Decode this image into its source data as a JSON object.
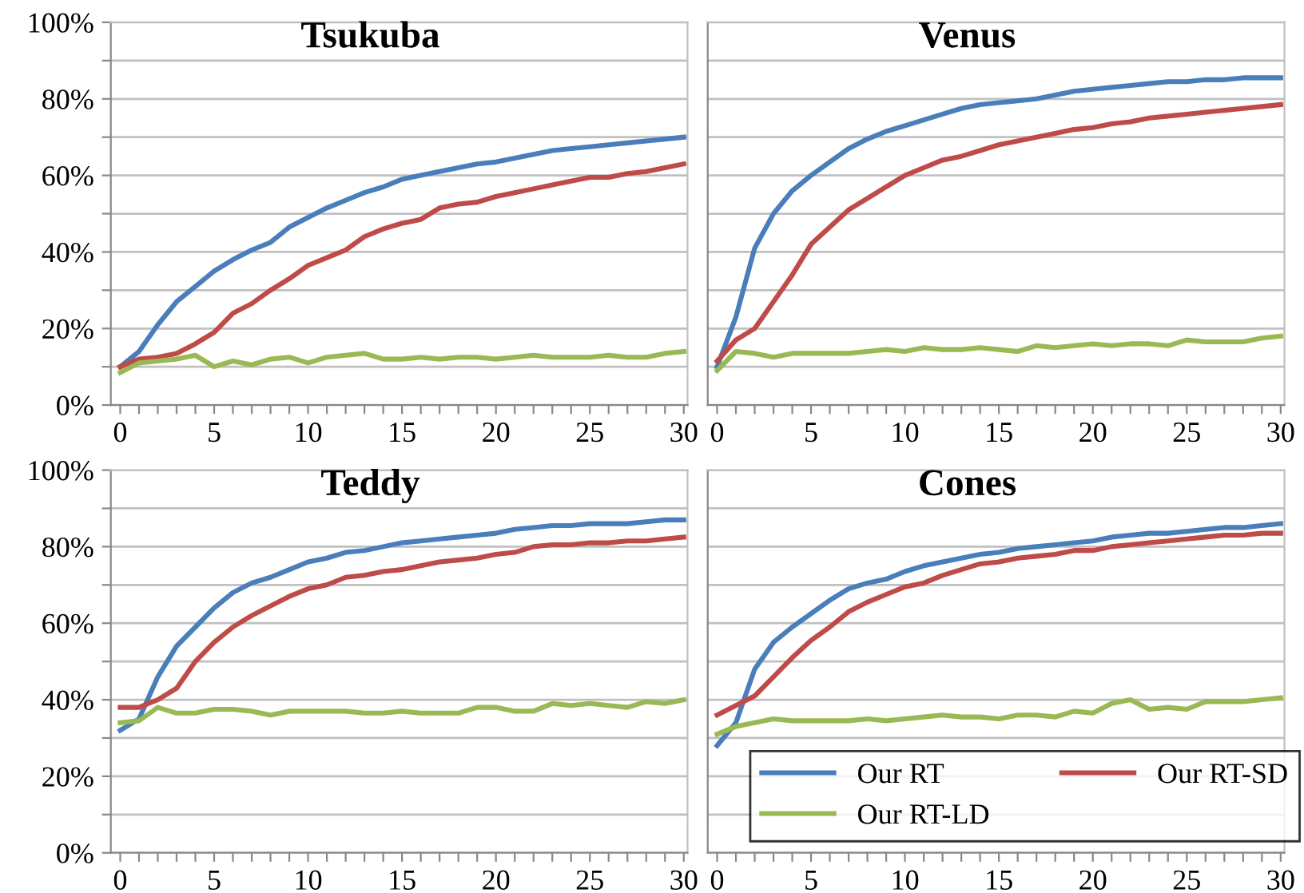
{
  "chart_data": [
    {
      "type": "line",
      "title": "Tsukuba",
      "x": [
        0,
        1,
        2,
        3,
        4,
        5,
        6,
        7,
        8,
        9,
        10,
        11,
        12,
        13,
        14,
        15,
        16,
        17,
        18,
        19,
        20,
        21,
        22,
        23,
        24,
        25,
        26,
        27,
        28,
        29,
        30
      ],
      "series": [
        {
          "color": "#4a7ebb",
          "values": [
            10,
            14,
            21,
            27,
            31,
            35,
            38,
            40.5,
            42.5,
            46.5,
            49,
            51.5,
            53.5,
            55.5,
            57,
            59,
            60,
            61,
            62,
            63,
            63.5,
            64.5,
            65.5,
            66.5,
            67,
            67.5,
            68,
            68.5,
            69,
            69.5,
            70
          ]
        },
        {
          "color": "#be4b48",
          "values": [
            10,
            12,
            12.5,
            13.5,
            16,
            19,
            24,
            26.5,
            30,
            33,
            36.5,
            38.5,
            40.5,
            44,
            46,
            47.5,
            48.5,
            51.5,
            52.5,
            53,
            54.5,
            55.5,
            56.5,
            57.5,
            58.5,
            59.5,
            59.5,
            60.5,
            61,
            62,
            63
          ]
        },
        {
          "color": "#98b954",
          "values": [
            8.5,
            11,
            11.5,
            12,
            13,
            10,
            11.5,
            10.5,
            12,
            12.5,
            11,
            12.5,
            13,
            13.5,
            12,
            12,
            12.5,
            12,
            12.5,
            12.5,
            12,
            12.5,
            13,
            12.5,
            12.5,
            12.5,
            13,
            12.5,
            12.5,
            13.5,
            14
          ]
        }
      ],
      "xlim": [
        -0.5,
        30.2
      ],
      "ylim": [
        0,
        100
      ],
      "xticks": [
        0,
        {
          "value": 1,
          "label": null
        },
        {
          "value": 2,
          "label": null
        },
        {
          "value": 3,
          "label": null
        },
        {
          "value": 4,
          "label": null
        },
        5,
        {
          "value": 6,
          "label": null
        },
        {
          "value": 7,
          "label": null
        },
        {
          "value": 8,
          "label": null
        },
        {
          "value": 9,
          "label": null
        },
        10,
        {
          "value": 11,
          "label": null
        },
        {
          "value": 12,
          "label": null
        },
        {
          "value": 13,
          "label": null
        },
        {
          "value": 14,
          "label": null
        },
        15,
        {
          "value": 16,
          "label": null
        },
        {
          "value": 17,
          "label": null
        },
        {
          "value": 18,
          "label": null
        },
        {
          "value": 19,
          "label": null
        },
        20,
        {
          "value": 21,
          "label": null
        },
        {
          "value": 22,
          "label": null
        },
        {
          "value": 23,
          "label": null
        },
        {
          "value": 24,
          "label": null
        },
        25,
        {
          "value": 26,
          "label": null
        },
        {
          "value": 27,
          "label": null
        },
        {
          "value": 28,
          "label": null
        },
        {
          "value": 29,
          "label": null
        },
        30
      ],
      "yticks": [
        {
          "value": 0,
          "label": "0%"
        },
        {
          "value": 10,
          "label": null
        },
        {
          "value": 20,
          "label": "20%"
        },
        {
          "value": 30,
          "label": null
        },
        {
          "value": 40,
          "label": "40%"
        },
        {
          "value": 50,
          "label": null
        },
        {
          "value": 60,
          "label": "60%"
        },
        {
          "value": 70,
          "label": null
        },
        {
          "value": 80,
          "label": "80%"
        },
        {
          "value": 90,
          "label": null
        },
        {
          "value": 100,
          "label": "100%"
        }
      ],
      "grid": "y",
      "legend": false,
      "marker": "none",
      "line_style": "solid"
    },
    {
      "type": "line",
      "title": "Venus",
      "x": [
        0,
        1,
        2,
        3,
        4,
        5,
        6,
        7,
        8,
        9,
        10,
        11,
        12,
        13,
        14,
        15,
        16,
        17,
        18,
        19,
        20,
        21,
        22,
        23,
        24,
        25,
        26,
        27,
        28,
        29,
        30
      ],
      "series": [
        {
          "color": "#4a7ebb",
          "values": [
            10,
            23,
            41,
            50,
            56,
            60,
            63.5,
            67,
            69.5,
            71.5,
            73,
            74.5,
            76,
            77.5,
            78.5,
            79,
            79.5,
            80,
            81,
            82,
            82.5,
            83,
            83.5,
            84,
            84.5,
            84.5,
            85,
            85,
            85.5,
            85.5,
            85.5
          ]
        },
        {
          "color": "#be4b48",
          "values": [
            11.5,
            17,
            20,
            27,
            34,
            42,
            46.5,
            51,
            54,
            57,
            60,
            62,
            64,
            65,
            66.5,
            68,
            69,
            70,
            71,
            72,
            72.5,
            73.5,
            74,
            75,
            75.5,
            76,
            76.5,
            77,
            77.5,
            78,
            78.5
          ]
        },
        {
          "color": "#98b954",
          "values": [
            9,
            14,
            13.5,
            12.5,
            13.5,
            13.5,
            13.5,
            13.5,
            14,
            14.5,
            14,
            15,
            14.5,
            14.5,
            15,
            14.5,
            14,
            15.5,
            15,
            15.5,
            16,
            15.5,
            16,
            16,
            15.5,
            17,
            16.5,
            16.5,
            16.5,
            17.5,
            18
          ]
        }
      ],
      "xlim": [
        -0.5,
        30.2
      ],
      "ylim": [
        0,
        100
      ],
      "xticks": [
        0,
        {
          "value": 1,
          "label": null
        },
        {
          "value": 2,
          "label": null
        },
        {
          "value": 3,
          "label": null
        },
        {
          "value": 4,
          "label": null
        },
        5,
        {
          "value": 6,
          "label": null
        },
        {
          "value": 7,
          "label": null
        },
        {
          "value": 8,
          "label": null
        },
        {
          "value": 9,
          "label": null
        },
        10,
        {
          "value": 11,
          "label": null
        },
        {
          "value": 12,
          "label": null
        },
        {
          "value": 13,
          "label": null
        },
        {
          "value": 14,
          "label": null
        },
        15,
        {
          "value": 16,
          "label": null
        },
        {
          "value": 17,
          "label": null
        },
        {
          "value": 18,
          "label": null
        },
        {
          "value": 19,
          "label": null
        },
        20,
        {
          "value": 21,
          "label": null
        },
        {
          "value": 22,
          "label": null
        },
        {
          "value": 23,
          "label": null
        },
        {
          "value": 24,
          "label": null
        },
        25,
        {
          "value": 26,
          "label": null
        },
        {
          "value": 27,
          "label": null
        },
        {
          "value": 28,
          "label": null
        },
        {
          "value": 29,
          "label": null
        },
        30
      ],
      "yticks": [
        {
          "value": 0,
          "label": null
        },
        {
          "value": 10,
          "label": null
        },
        {
          "value": 20,
          "label": null
        },
        {
          "value": 30,
          "label": null
        },
        {
          "value": 40,
          "label": null
        },
        {
          "value": 50,
          "label": null
        },
        {
          "value": 60,
          "label": null
        },
        {
          "value": 70,
          "label": null
        },
        {
          "value": 80,
          "label": null
        },
        {
          "value": 90,
          "label": null
        },
        {
          "value": 100,
          "label": null
        }
      ],
      "tick_labels": "x",
      "grid": "y",
      "legend": false,
      "marker": "none",
      "line_style": "solid"
    },
    {
      "type": "line",
      "title": "Teddy",
      "x": [
        0,
        1,
        2,
        3,
        4,
        5,
        6,
        7,
        8,
        9,
        10,
        11,
        12,
        13,
        14,
        15,
        16,
        17,
        18,
        19,
        20,
        21,
        22,
        23,
        24,
        25,
        26,
        27,
        28,
        29,
        30
      ],
      "series": [
        {
          "color": "#4a7ebb",
          "values": [
            32,
            35,
            46,
            54,
            59,
            64,
            68,
            70.5,
            72,
            74,
            76,
            77,
            78.5,
            79,
            80,
            81,
            81.5,
            82,
            82.5,
            83,
            83.5,
            84.5,
            85,
            85.5,
            85.5,
            86,
            86,
            86,
            86.5,
            87,
            87
          ]
        },
        {
          "color": "#be4b48",
          "values": [
            38,
            38,
            40,
            43,
            50,
            55,
            59,
            62,
            64.5,
            67,
            69,
            70,
            72,
            72.5,
            73.5,
            74,
            75,
            76,
            76.5,
            77,
            78,
            78.5,
            80,
            80.5,
            80.5,
            81,
            81,
            81.5,
            81.5,
            82,
            82.5
          ]
        },
        {
          "color": "#98b954",
          "values": [
            34,
            34.5,
            38,
            36.5,
            36.5,
            37.5,
            37.5,
            37,
            36,
            37,
            37,
            37,
            37,
            36.5,
            36.5,
            37,
            36.5,
            36.5,
            36.5,
            38,
            38,
            37,
            37,
            39,
            38.5,
            39,
            38.5,
            38,
            39.5,
            39,
            40
          ]
        }
      ],
      "xlim": [
        -0.5,
        30.2
      ],
      "ylim": [
        0,
        100
      ],
      "xticks": [
        0,
        {
          "value": 1,
          "label": null
        },
        {
          "value": 2,
          "label": null
        },
        {
          "value": 3,
          "label": null
        },
        {
          "value": 4,
          "label": null
        },
        5,
        {
          "value": 6,
          "label": null
        },
        {
          "value": 7,
          "label": null
        },
        {
          "value": 8,
          "label": null
        },
        {
          "value": 9,
          "label": null
        },
        10,
        {
          "value": 11,
          "label": null
        },
        {
          "value": 12,
          "label": null
        },
        {
          "value": 13,
          "label": null
        },
        {
          "value": 14,
          "label": null
        },
        15,
        {
          "value": 16,
          "label": null
        },
        {
          "value": 17,
          "label": null
        },
        {
          "value": 18,
          "label": null
        },
        {
          "value": 19,
          "label": null
        },
        20,
        {
          "value": 21,
          "label": null
        },
        {
          "value": 22,
          "label": null
        },
        {
          "value": 23,
          "label": null
        },
        {
          "value": 24,
          "label": null
        },
        25,
        {
          "value": 26,
          "label": null
        },
        {
          "value": 27,
          "label": null
        },
        {
          "value": 28,
          "label": null
        },
        {
          "value": 29,
          "label": null
        },
        30
      ],
      "yticks": [
        {
          "value": 0,
          "label": "0%"
        },
        {
          "value": 10,
          "label": null
        },
        {
          "value": 20,
          "label": "20%"
        },
        {
          "value": 30,
          "label": null
        },
        {
          "value": 40,
          "label": "40%"
        },
        {
          "value": 50,
          "label": null
        },
        {
          "value": 60,
          "label": "60%"
        },
        {
          "value": 70,
          "label": null
        },
        {
          "value": 80,
          "label": "80%"
        },
        {
          "value": 90,
          "label": null
        },
        {
          "value": 100,
          "label": "100%"
        }
      ],
      "grid": "y",
      "legend": false,
      "marker": "none",
      "line_style": "solid"
    },
    {
      "type": "line",
      "title": "Cones",
      "x": [
        0,
        1,
        2,
        3,
        4,
        5,
        6,
        7,
        8,
        9,
        10,
        11,
        12,
        13,
        14,
        15,
        16,
        17,
        18,
        19,
        20,
        21,
        22,
        23,
        24,
        25,
        26,
        27,
        28,
        29,
        30
      ],
      "series": [
        {
          "name": "Our RT",
          "color": "#4a7ebb",
          "values": [
            28,
            34,
            48,
            55,
            59,
            62.5,
            66,
            69,
            70.5,
            71.5,
            73.5,
            75,
            76,
            77,
            78,
            78.5,
            79.5,
            80,
            80.5,
            81,
            81.5,
            82.5,
            83,
            83.5,
            83.5,
            84,
            84.5,
            85,
            85,
            85.5,
            86
          ]
        },
        {
          "name": "Our RT-SD",
          "color": "#be4b48",
          "values": [
            36,
            38.5,
            41,
            46,
            51,
            55.5,
            59,
            63,
            65.5,
            67.5,
            69.5,
            70.5,
            72.5,
            74,
            75.5,
            76,
            77,
            77.5,
            78,
            79,
            79,
            80,
            80.5,
            81,
            81.5,
            82,
            82.5,
            83,
            83,
            83.5,
            83.5
          ]
        },
        {
          "name": "Our RT-LD",
          "color": "#98b954",
          "values": [
            31,
            33,
            34,
            35,
            34.5,
            34.5,
            34.5,
            34.5,
            35,
            34.5,
            35,
            35.5,
            36,
            35.5,
            35.5,
            35,
            36,
            36,
            35.5,
            37,
            36.5,
            39,
            40,
            37.5,
            38,
            37.5,
            39.5,
            39.5,
            39.5,
            40,
            40.5
          ]
        }
      ],
      "xlim": [
        -0.5,
        30.2
      ],
      "ylim": [
        0,
        100
      ],
      "xticks": [
        0,
        {
          "value": 1,
          "label": null
        },
        {
          "value": 2,
          "label": null
        },
        {
          "value": 3,
          "label": null
        },
        {
          "value": 4,
          "label": null
        },
        5,
        {
          "value": 6,
          "label": null
        },
        {
          "value": 7,
          "label": null
        },
        {
          "value": 8,
          "label": null
        },
        {
          "value": 9,
          "label": null
        },
        10,
        {
          "value": 11,
          "label": null
        },
        {
          "value": 12,
          "label": null
        },
        {
          "value": 13,
          "label": null
        },
        {
          "value": 14,
          "label": null
        },
        15,
        {
          "value": 16,
          "label": null
        },
        {
          "value": 17,
          "label": null
        },
        {
          "value": 18,
          "label": null
        },
        {
          "value": 19,
          "label": null
        },
        20,
        {
          "value": 21,
          "label": null
        },
        {
          "value": 22,
          "label": null
        },
        {
          "value": 23,
          "label": null
        },
        {
          "value": 24,
          "label": null
        },
        25,
        {
          "value": 26,
          "label": null
        },
        {
          "value": 27,
          "label": null
        },
        {
          "value": 28,
          "label": null
        },
        {
          "value": 29,
          "label": null
        },
        30
      ],
      "yticks": [
        {
          "value": 0,
          "label": null
        },
        {
          "value": 10,
          "label": null
        },
        {
          "value": 20,
          "label": null
        },
        {
          "value": 30,
          "label": null
        },
        {
          "value": 40,
          "label": null
        },
        {
          "value": 50,
          "label": null
        },
        {
          "value": 60,
          "label": null
        },
        {
          "value": 70,
          "label": null
        },
        {
          "value": 80,
          "label": null
        },
        {
          "value": 90,
          "label": null
        },
        {
          "value": 100,
          "label": null
        }
      ],
      "tick_labels": "x",
      "grid": "y",
      "legend": "bottom",
      "marker": "none",
      "line_style": "solid"
    }
  ]
}
